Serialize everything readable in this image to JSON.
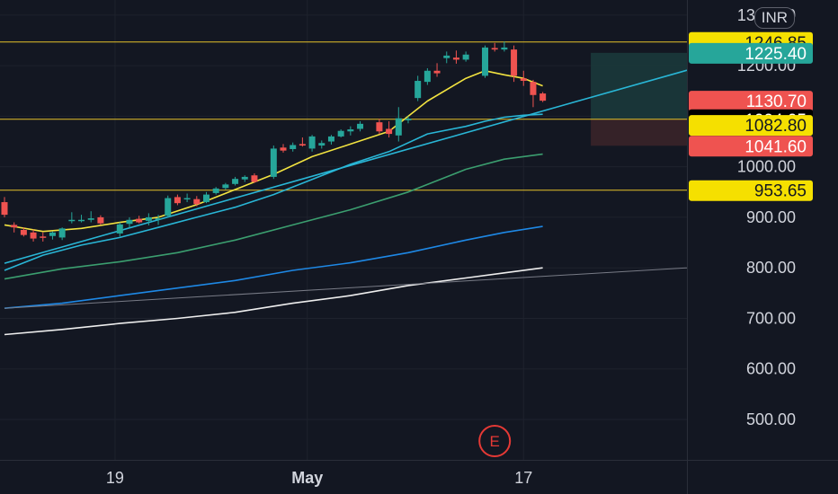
{
  "currency": "INR",
  "marker_letter": "E",
  "colors": {
    "background": "#131722",
    "grid": "#1e222d",
    "axis_text": "#d1d4dc",
    "bullish": "#26a69a",
    "bearish": "#ef5350",
    "hline": "#e6c229",
    "ema20": "#f2e340",
    "ema50": "#29b6d6",
    "ema100": "#3b9e6f",
    "ema200": "#1e88e5",
    "sma300": "#eeeeee",
    "trendline": "#29b6d6",
    "gray_line": "#787b86",
    "target_zone": "#1b3b3c",
    "stop_zone": "#3a2329",
    "earnings_marker": "#e53935"
  },
  "chart_data": {
    "type": "candlestick",
    "y_axis": {
      "min": 420,
      "max": 1330,
      "ticks": [
        500,
        600,
        700,
        800,
        900,
        1000,
        1100,
        1200,
        1300
      ]
    },
    "y_tick_labels": [
      "500.00",
      "600.00",
      "700.00",
      "800.00",
      "900.00",
      "1000.00",
      "1100.00",
      "1200.00",
      "1300.00"
    ],
    "x_axis": {
      "min": 0,
      "max": 71
    },
    "x_tick_labels": [
      {
        "label": "19",
        "i": 11.5
      },
      {
        "label": "May",
        "i": 31.5
      },
      {
        "label": "17",
        "i": 54
      }
    ],
    "candles": [
      {
        "i": 0,
        "o": 930,
        "h": 940,
        "l": 900,
        "c": 905
      },
      {
        "i": 1,
        "o": 885,
        "h": 890,
        "l": 870,
        "c": 880
      },
      {
        "i": 2,
        "o": 875,
        "h": 880,
        "l": 862,
        "c": 865
      },
      {
        "i": 3,
        "o": 870,
        "h": 876,
        "l": 852,
        "c": 858
      },
      {
        "i": 4,
        "o": 862,
        "h": 870,
        "l": 852,
        "c": 860
      },
      {
        "i": 5,
        "o": 863,
        "h": 872,
        "l": 856,
        "c": 870
      },
      {
        "i": 6,
        "o": 860,
        "h": 880,
        "l": 855,
        "c": 878
      },
      {
        "i": 7,
        "o": 893,
        "h": 910,
        "l": 888,
        "c": 895
      },
      {
        "i": 8,
        "o": 893,
        "h": 905,
        "l": 890,
        "c": 895
      },
      {
        "i": 9,
        "o": 895,
        "h": 912,
        "l": 890,
        "c": 898
      },
      {
        "i": 10,
        "o": 900,
        "h": 904,
        "l": 885,
        "c": 888
      },
      {
        "i": 12,
        "o": 868,
        "h": 890,
        "l": 862,
        "c": 886
      },
      {
        "i": 13,
        "o": 887,
        "h": 900,
        "l": 880,
        "c": 895
      },
      {
        "i": 14,
        "o": 897,
        "h": 903,
        "l": 888,
        "c": 890
      },
      {
        "i": 15,
        "o": 893,
        "h": 908,
        "l": 884,
        "c": 900
      },
      {
        "i": 16,
        "o": 897,
        "h": 905,
        "l": 885,
        "c": 898
      },
      {
        "i": 17,
        "o": 903,
        "h": 943,
        "l": 900,
        "c": 938
      },
      {
        "i": 18,
        "o": 940,
        "h": 945,
        "l": 924,
        "c": 928
      },
      {
        "i": 19,
        "o": 936,
        "h": 947,
        "l": 930,
        "c": 938
      },
      {
        "i": 20,
        "o": 936,
        "h": 942,
        "l": 922,
        "c": 926
      },
      {
        "i": 21,
        "o": 930,
        "h": 950,
        "l": 928,
        "c": 945
      },
      {
        "i": 22,
        "o": 948,
        "h": 960,
        "l": 945,
        "c": 957
      },
      {
        "i": 23,
        "o": 958,
        "h": 968,
        "l": 955,
        "c": 965
      },
      {
        "i": 24,
        "o": 966,
        "h": 980,
        "l": 963,
        "c": 976
      },
      {
        "i": 25,
        "o": 975,
        "h": 983,
        "l": 970,
        "c": 980
      },
      {
        "i": 26,
        "o": 983,
        "h": 987,
        "l": 968,
        "c": 970
      },
      {
        "i": 28,
        "o": 980,
        "h": 1042,
        "l": 976,
        "c": 1036
      },
      {
        "i": 29,
        "o": 1038,
        "h": 1045,
        "l": 1028,
        "c": 1032
      },
      {
        "i": 30,
        "o": 1035,
        "h": 1048,
        "l": 1030,
        "c": 1043
      },
      {
        "i": 31,
        "o": 1045,
        "h": 1058,
        "l": 1040,
        "c": 1042
      },
      {
        "i": 32,
        "o": 1036,
        "h": 1063,
        "l": 1030,
        "c": 1060
      },
      {
        "i": 33,
        "o": 1042,
        "h": 1052,
        "l": 1036,
        "c": 1047
      },
      {
        "i": 34,
        "o": 1050,
        "h": 1063,
        "l": 1044,
        "c": 1060
      },
      {
        "i": 35,
        "o": 1060,
        "h": 1074,
        "l": 1058,
        "c": 1071
      },
      {
        "i": 36,
        "o": 1070,
        "h": 1080,
        "l": 1062,
        "c": 1074
      },
      {
        "i": 37,
        "o": 1075,
        "h": 1090,
        "l": 1070,
        "c": 1085
      },
      {
        "i": 39,
        "o": 1088,
        "h": 1095,
        "l": 1065,
        "c": 1070
      },
      {
        "i": 40,
        "o": 1075,
        "h": 1090,
        "l": 1058,
        "c": 1065
      },
      {
        "i": 41,
        "o": 1062,
        "h": 1118,
        "l": 1050,
        "c": 1096
      },
      {
        "i": 42,
        "o": 1092,
        "h": 1100,
        "l": 1086,
        "c": 1095
      },
      {
        "i": 43,
        "o": 1136,
        "h": 1180,
        "l": 1130,
        "c": 1170
      },
      {
        "i": 44,
        "o": 1168,
        "h": 1195,
        "l": 1162,
        "c": 1190
      },
      {
        "i": 45,
        "o": 1190,
        "h": 1205,
        "l": 1178,
        "c": 1185
      },
      {
        "i": 46,
        "o": 1215,
        "h": 1228,
        "l": 1205,
        "c": 1220
      },
      {
        "i": 47,
        "o": 1216,
        "h": 1230,
        "l": 1204,
        "c": 1212
      },
      {
        "i": 48,
        "o": 1212,
        "h": 1228,
        "l": 1208,
        "c": 1222
      },
      {
        "i": 50,
        "o": 1180,
        "h": 1240,
        "l": 1176,
        "c": 1236
      },
      {
        "i": 51,
        "o": 1235,
        "h": 1245,
        "l": 1228,
        "c": 1232
      },
      {
        "i": 52,
        "o": 1232,
        "h": 1248,
        "l": 1228,
        "c": 1236
      },
      {
        "i": 53,
        "o": 1232,
        "h": 1240,
        "l": 1168,
        "c": 1180
      },
      {
        "i": 54,
        "o": 1175,
        "h": 1190,
        "l": 1160,
        "c": 1170
      },
      {
        "i": 55,
        "o": 1168,
        "h": 1172,
        "l": 1118,
        "c": 1142
      },
      {
        "i": 56,
        "o": 1145,
        "h": 1148,
        "l": 1128,
        "c": 1130.7
      }
    ],
    "series": [
      {
        "id": "ema20",
        "color_key": "ema20",
        "points": [
          [
            0,
            885
          ],
          [
            4,
            872
          ],
          [
            8,
            878
          ],
          [
            12,
            890
          ],
          [
            16,
            900
          ],
          [
            20,
            925
          ],
          [
            24,
            955
          ],
          [
            28,
            985
          ],
          [
            32,
            1020
          ],
          [
            36,
            1045
          ],
          [
            40,
            1070
          ],
          [
            44,
            1130
          ],
          [
            48,
            1175
          ],
          [
            50,
            1190
          ],
          [
            52,
            1182
          ],
          [
            54,
            1175
          ],
          [
            56,
            1160
          ]
        ]
      },
      {
        "id": "ema50",
        "color_key": "ema50",
        "points": [
          [
            0,
            795
          ],
          [
            4,
            825
          ],
          [
            8,
            845
          ],
          [
            12,
            860
          ],
          [
            16,
            880
          ],
          [
            20,
            900
          ],
          [
            24,
            920
          ],
          [
            28,
            945
          ],
          [
            32,
            975
          ],
          [
            36,
            1005
          ],
          [
            40,
            1030
          ],
          [
            44,
            1065
          ],
          [
            48,
            1080
          ],
          [
            50,
            1090
          ],
          [
            52,
            1098
          ],
          [
            54,
            1102
          ],
          [
            56,
            1104
          ]
        ]
      },
      {
        "id": "ema100",
        "color_key": "ema100",
        "points": [
          [
            0,
            778
          ],
          [
            6,
            798
          ],
          [
            12,
            812
          ],
          [
            18,
            830
          ],
          [
            24,
            855
          ],
          [
            30,
            885
          ],
          [
            36,
            915
          ],
          [
            42,
            950
          ],
          [
            48,
            995
          ],
          [
            52,
            1015
          ],
          [
            56,
            1025
          ]
        ]
      },
      {
        "id": "ema200",
        "color_key": "ema200",
        "points": [
          [
            0,
            720
          ],
          [
            6,
            730
          ],
          [
            12,
            745
          ],
          [
            18,
            760
          ],
          [
            24,
            775
          ],
          [
            30,
            795
          ],
          [
            36,
            810
          ],
          [
            42,
            830
          ],
          [
            48,
            855
          ],
          [
            52,
            870
          ],
          [
            56,
            882
          ]
        ]
      },
      {
        "id": "sma300",
        "color_key": "sma300",
        "points": [
          [
            0,
            668
          ],
          [
            6,
            678
          ],
          [
            12,
            690
          ],
          [
            18,
            700
          ],
          [
            24,
            712
          ],
          [
            30,
            730
          ],
          [
            36,
            745
          ],
          [
            42,
            765
          ],
          [
            48,
            780
          ],
          [
            52,
            790
          ],
          [
            56,
            800
          ]
        ]
      },
      {
        "id": "trendline",
        "color_key": "trendline",
        "points": [
          [
            0,
            809
          ],
          [
            71,
            1191
          ]
        ]
      },
      {
        "id": "gray_line",
        "color_key": "gray_line",
        "points": [
          [
            0,
            720
          ],
          [
            71,
            800
          ]
        ]
      }
    ],
    "horizontal_lines": [
      1246.85,
      1094.05,
      953.65
    ],
    "target_zone": {
      "i_start": 61,
      "i_end": 71,
      "top": 1225.4,
      "bottom": 1094.05
    },
    "stop_zone": {
      "i_start": 61,
      "i_end": 71,
      "top": 1094.05,
      "bottom": 1041.6
    },
    "price_labels": [
      {
        "text": "1246.85",
        "value": 1246.85,
        "bg": "#f5e000",
        "fg": "#131722"
      },
      {
        "text": "1225.40",
        "value": 1225.4,
        "bg": "#26a69a",
        "fg": "#ffffff"
      },
      {
        "text": "1130.70",
        "value": 1130.7,
        "bg": "#ef5350",
        "fg": "#ffffff"
      },
      {
        "text": "1094.05",
        "value": 1094.05,
        "bg": "#000000",
        "fg": "#ffffff"
      },
      {
        "text": "1082.80",
        "value": 1082.8,
        "bg": "#f5e000",
        "fg": "#131722"
      },
      {
        "text": "1041.60",
        "value": 1041.6,
        "bg": "#ef5350",
        "fg": "#ffffff"
      },
      {
        "text": "953.65",
        "value": 953.65,
        "bg": "#f5e000",
        "fg": "#131722"
      }
    ],
    "earnings_marker_i": 51
  }
}
